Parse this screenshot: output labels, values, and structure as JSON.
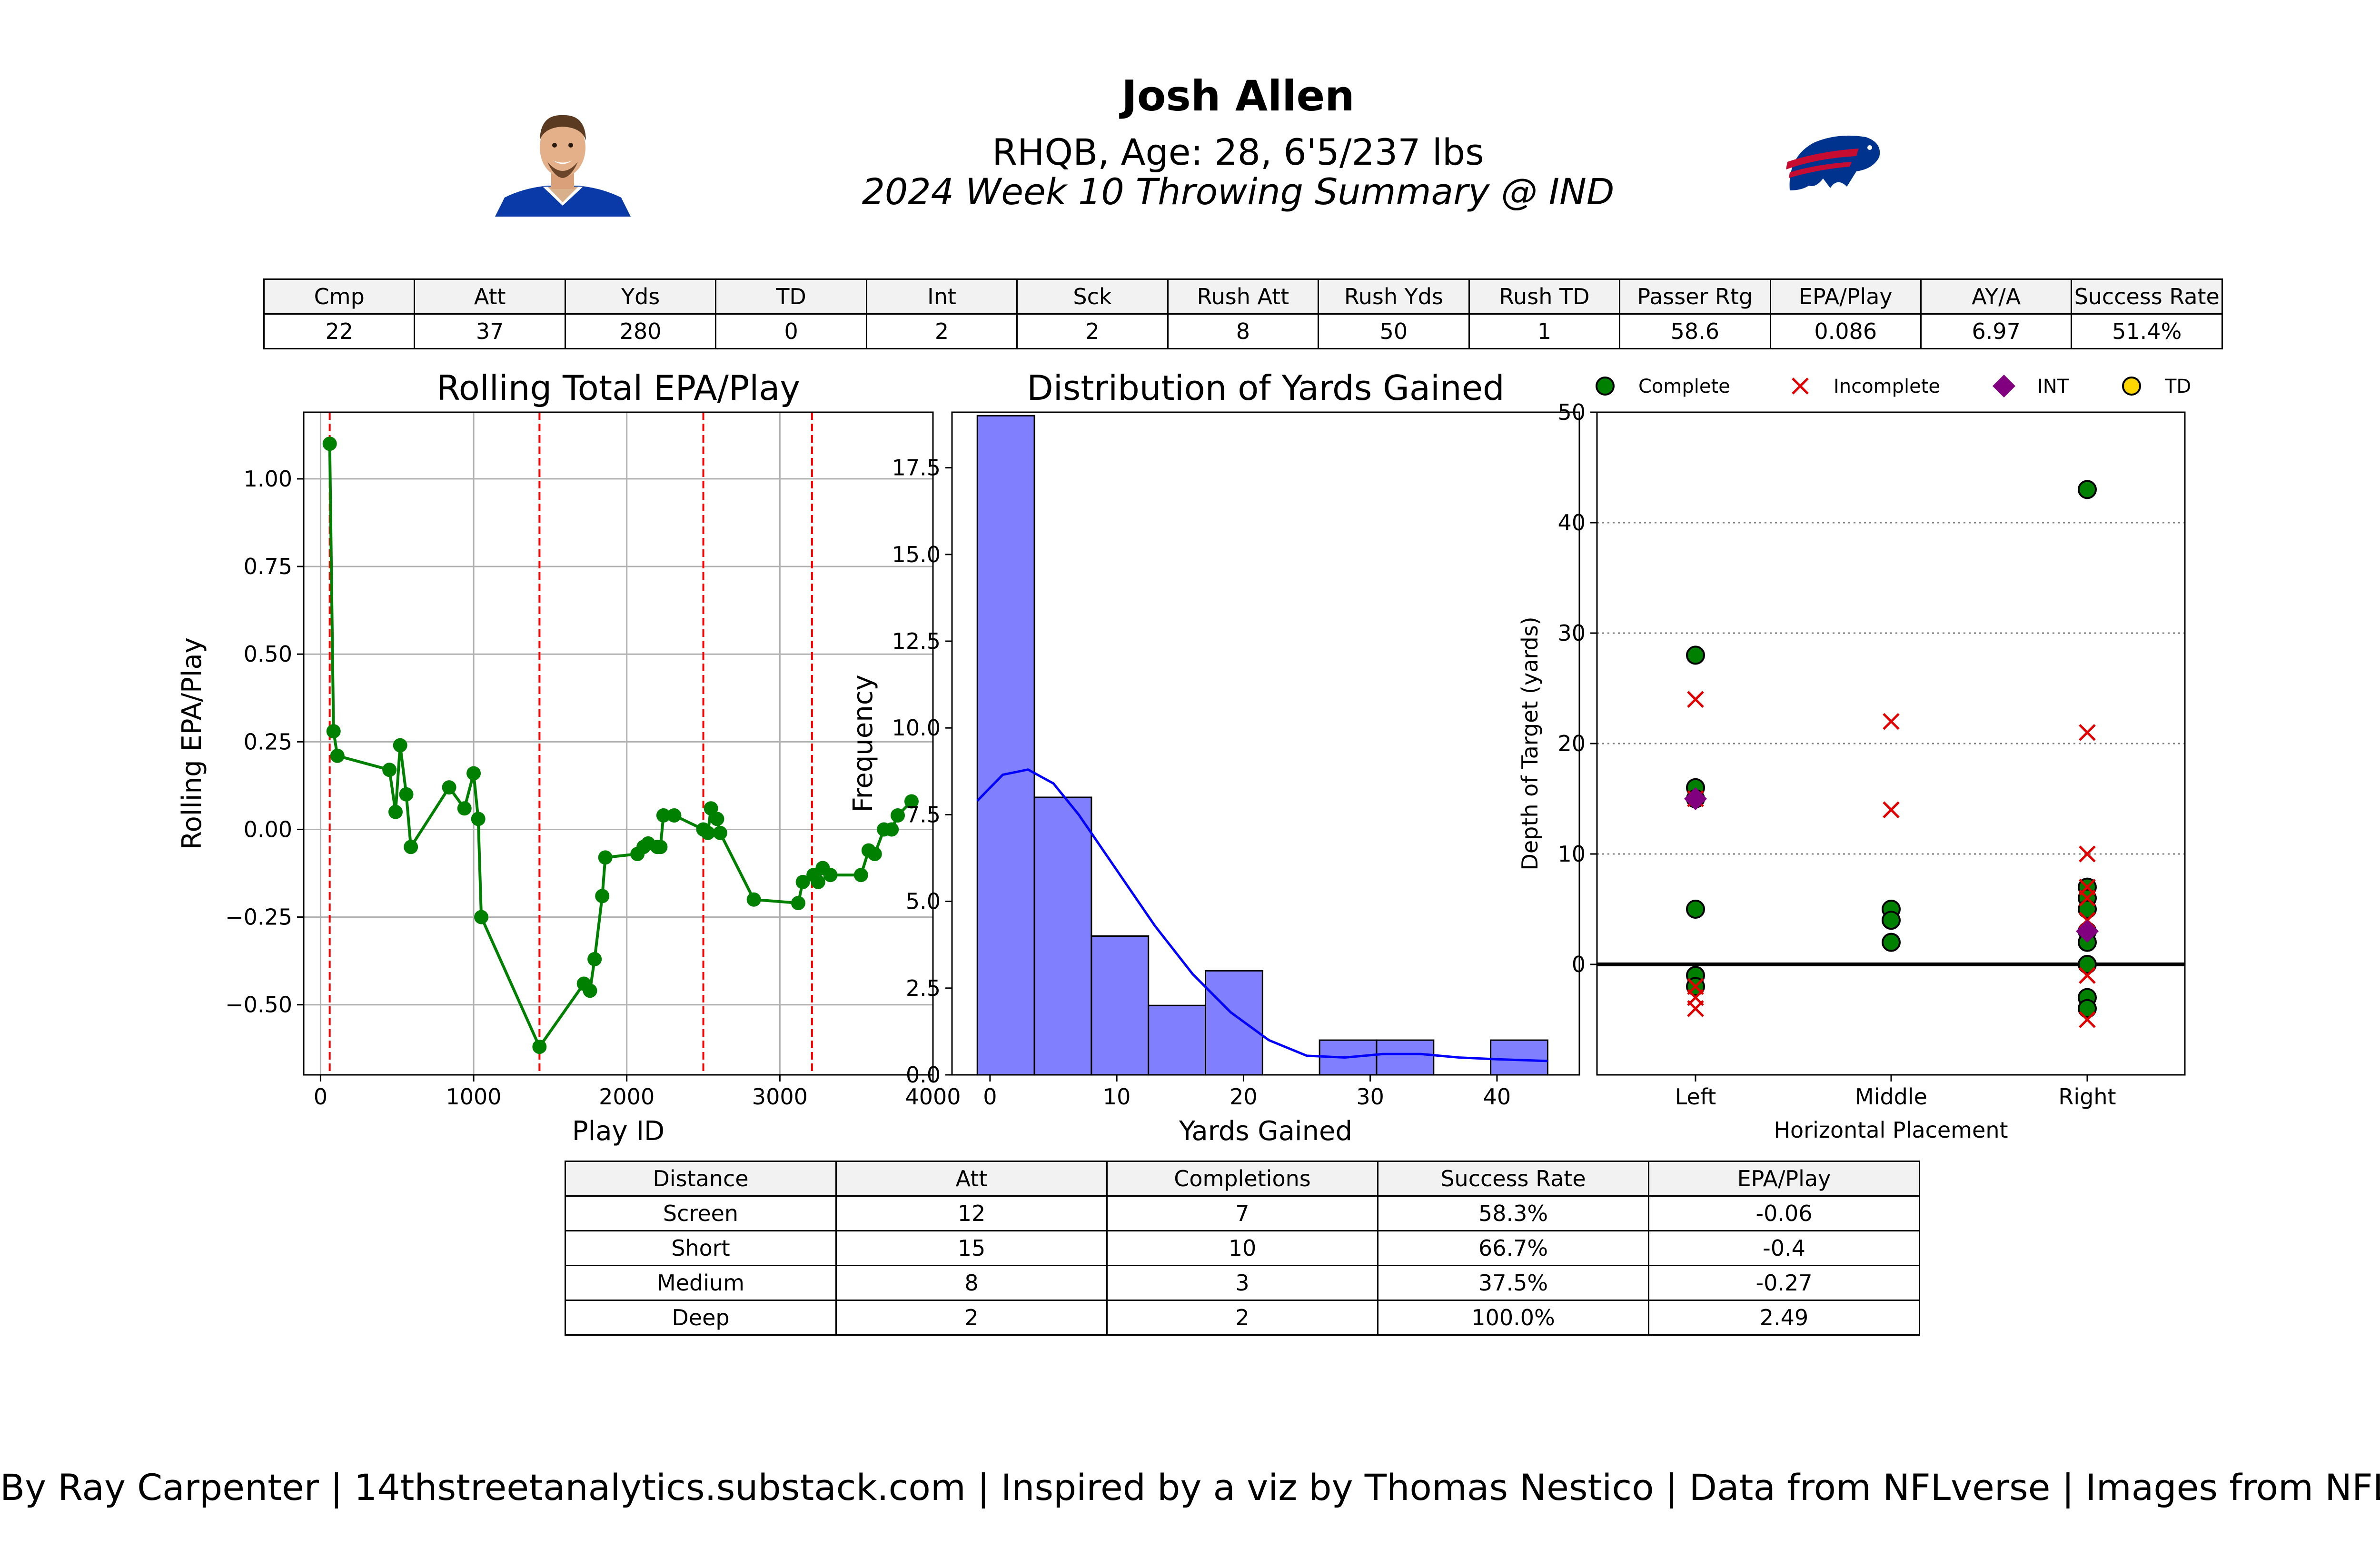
{
  "header": {
    "name": "Josh Allen",
    "subtitle": "RHQB, Age: 28, 6'5/237 lbs",
    "week": "2024 Week 10 Throwing Summary @ IND"
  },
  "colors": {
    "team_blue": "#00338D",
    "team_red": "#C60C30",
    "line_green": "#008000",
    "hist_fill": "#8080ff",
    "kde_blue": "#0000ff",
    "vline_red": "#ff0000",
    "int_purple": "#800080",
    "td_gold": "#FFD700"
  },
  "stats_table": {
    "headers": [
      "Cmp",
      "Att",
      "Yds",
      "TD",
      "Int",
      "Sck",
      "Rush Att",
      "Rush Yds",
      "Rush TD",
      "Passer Rtg",
      "EPA/Play",
      "AY/A",
      "Success Rate"
    ],
    "values": [
      "22",
      "37",
      "280",
      "0",
      "2",
      "2",
      "8",
      "50",
      "1",
      "58.6",
      "0.086",
      "6.97",
      "51.4%"
    ]
  },
  "distance_table": {
    "headers": [
      "Distance",
      "Att",
      "Completions",
      "Success Rate",
      "EPA/Play"
    ],
    "rows": [
      [
        "Screen",
        "12",
        "7",
        "58.3%",
        "-0.06"
      ],
      [
        "Short",
        "15",
        "10",
        "66.7%",
        "-0.4"
      ],
      [
        "Medium",
        "8",
        "3",
        "37.5%",
        "-0.27"
      ],
      [
        "Deep",
        "2",
        "2",
        "100.0%",
        "2.49"
      ]
    ]
  },
  "footer": "By Ray Carpenter | 14thstreetanalytics.substack.com | Inspired by a viz by Thomas Nestico | Data from NFLverse | Images from NFL.com",
  "chart_data": [
    {
      "type": "line",
      "title": "Rolling Total EPA/Play",
      "xlabel": "Play ID",
      "ylabel": "Rolling EPA/Play",
      "xlim": [
        -110,
        4000
      ],
      "ylim": [
        -0.7,
        1.19
      ],
      "xticks": [
        0,
        1000,
        2000,
        3000,
        4000
      ],
      "yticks": [
        -0.5,
        -0.25,
        0.0,
        0.25,
        0.5,
        0.75,
        1.0
      ],
      "ytick_labels": [
        "−0.50",
        "−0.25",
        "0.00",
        "0.25",
        "0.50",
        "0.75",
        "1.00"
      ],
      "grid": true,
      "quarter_lines": [
        60,
        1430,
        2500,
        3210
      ],
      "x": [
        60,
        85,
        110,
        450,
        490,
        520,
        560,
        590,
        840,
        940,
        1000,
        1030,
        1050,
        1430,
        1720,
        1760,
        1790,
        1840,
        1860,
        2070,
        2110,
        2140,
        2200,
        2220,
        2240,
        2310,
        2500,
        2530,
        2550,
        2590,
        2610,
        2830,
        3120,
        3150,
        3220,
        3250,
        3280,
        3330,
        3530,
        3580,
        3620,
        3680,
        3730,
        3770,
        3860
      ],
      "y": [
        1.1,
        0.28,
        0.21,
        0.17,
        0.05,
        0.24,
        0.1,
        -0.05,
        0.12,
        0.06,
        0.16,
        0.03,
        -0.25,
        -0.62,
        -0.44,
        -0.46,
        -0.37,
        -0.19,
        -0.08,
        -0.07,
        -0.05,
        -0.04,
        -0.05,
        -0.05,
        0.04,
        0.04,
        0.0,
        -0.01,
        0.06,
        0.03,
        -0.01,
        -0.2,
        -0.21,
        -0.15,
        -0.13,
        -0.15,
        -0.11,
        -0.13,
        -0.13,
        -0.06,
        -0.07,
        0.0,
        0.0,
        0.04,
        0.08
      ]
    },
    {
      "type": "bar",
      "title": "Distribution of Yards Gained",
      "xlabel": "Yards Gained",
      "ylabel": "Frequency",
      "bins": [
        [
          -1,
          3.5
        ],
        [
          3.5,
          8
        ],
        [
          8,
          12.5
        ],
        [
          12.5,
          17
        ],
        [
          17,
          21.5
        ],
        [
          21.5,
          26
        ],
        [
          26,
          30.5
        ],
        [
          30.5,
          35
        ],
        [
          35,
          39.5
        ],
        [
          39.5,
          44
        ]
      ],
      "values": [
        19,
        8,
        4,
        2,
        3,
        0,
        1,
        1,
        0,
        1
      ],
      "kde_x": [
        -1,
        1,
        3,
        5,
        7,
        10,
        13,
        16,
        19,
        22,
        25,
        28,
        31,
        34,
        37,
        40,
        44
      ],
      "kde_y": [
        7.9,
        8.65,
        8.8,
        8.4,
        7.5,
        5.9,
        4.3,
        2.9,
        1.8,
        1.0,
        0.55,
        0.5,
        0.6,
        0.6,
        0.5,
        0.45,
        0.4
      ],
      "xlim": [
        -3,
        46.5
      ],
      "ylim": [
        0,
        19.1
      ],
      "xticks": [
        0,
        10,
        20,
        30,
        40
      ],
      "yticks": [
        0.0,
        2.5,
        5.0,
        7.5,
        10.0,
        12.5,
        15.0,
        17.5
      ]
    },
    {
      "type": "scatter",
      "xlabel": "Horizontal Placement",
      "ylabel": "Depth of Target (yards)",
      "categories": [
        "Left",
        "Middle",
        "Right"
      ],
      "ylim": [
        -10,
        50
      ],
      "yticks": [
        0,
        10,
        20,
        30,
        40,
        50
      ],
      "grid": "dotted horizontal",
      "legend": {
        "placement": "top",
        "entries": [
          "Complete",
          "Incomplete",
          "INT",
          "TD"
        ]
      },
      "series": [
        {
          "name": "Complete",
          "points": [
            [
              "Left",
              28
            ],
            [
              "Left",
              16
            ],
            [
              "Left",
              15
            ],
            [
              "Left",
              5
            ],
            [
              "Left",
              -1
            ],
            [
              "Left",
              -2
            ],
            [
              "Middle",
              5
            ],
            [
              "Middle",
              4
            ],
            [
              "Middle",
              2
            ],
            [
              "Right",
              43
            ],
            [
              "Right",
              7
            ],
            [
              "Right",
              6
            ],
            [
              "Right",
              5
            ],
            [
              "Right",
              3
            ],
            [
              "Right",
              2
            ],
            [
              "Right",
              0
            ],
            [
              "Right",
              -3
            ],
            [
              "Right",
              -4
            ]
          ]
        },
        {
          "name": "Incomplete",
          "points": [
            [
              "Left",
              24
            ],
            [
              "Left",
              15
            ],
            [
              "Left",
              -2
            ],
            [
              "Left",
              -3
            ],
            [
              "Left",
              -4
            ],
            [
              "Middle",
              22
            ],
            [
              "Middle",
              14
            ],
            [
              "Right",
              21
            ],
            [
              "Right",
              10
            ],
            [
              "Right",
              7
            ],
            [
              "Right",
              6
            ],
            [
              "Right",
              4
            ],
            [
              "Right",
              -1
            ],
            [
              "Right",
              -5
            ]
          ]
        },
        {
          "name": "INT",
          "points": [
            [
              "Left",
              15
            ],
            [
              "Right",
              3
            ]
          ]
        },
        {
          "name": "TD",
          "points": []
        }
      ]
    }
  ]
}
